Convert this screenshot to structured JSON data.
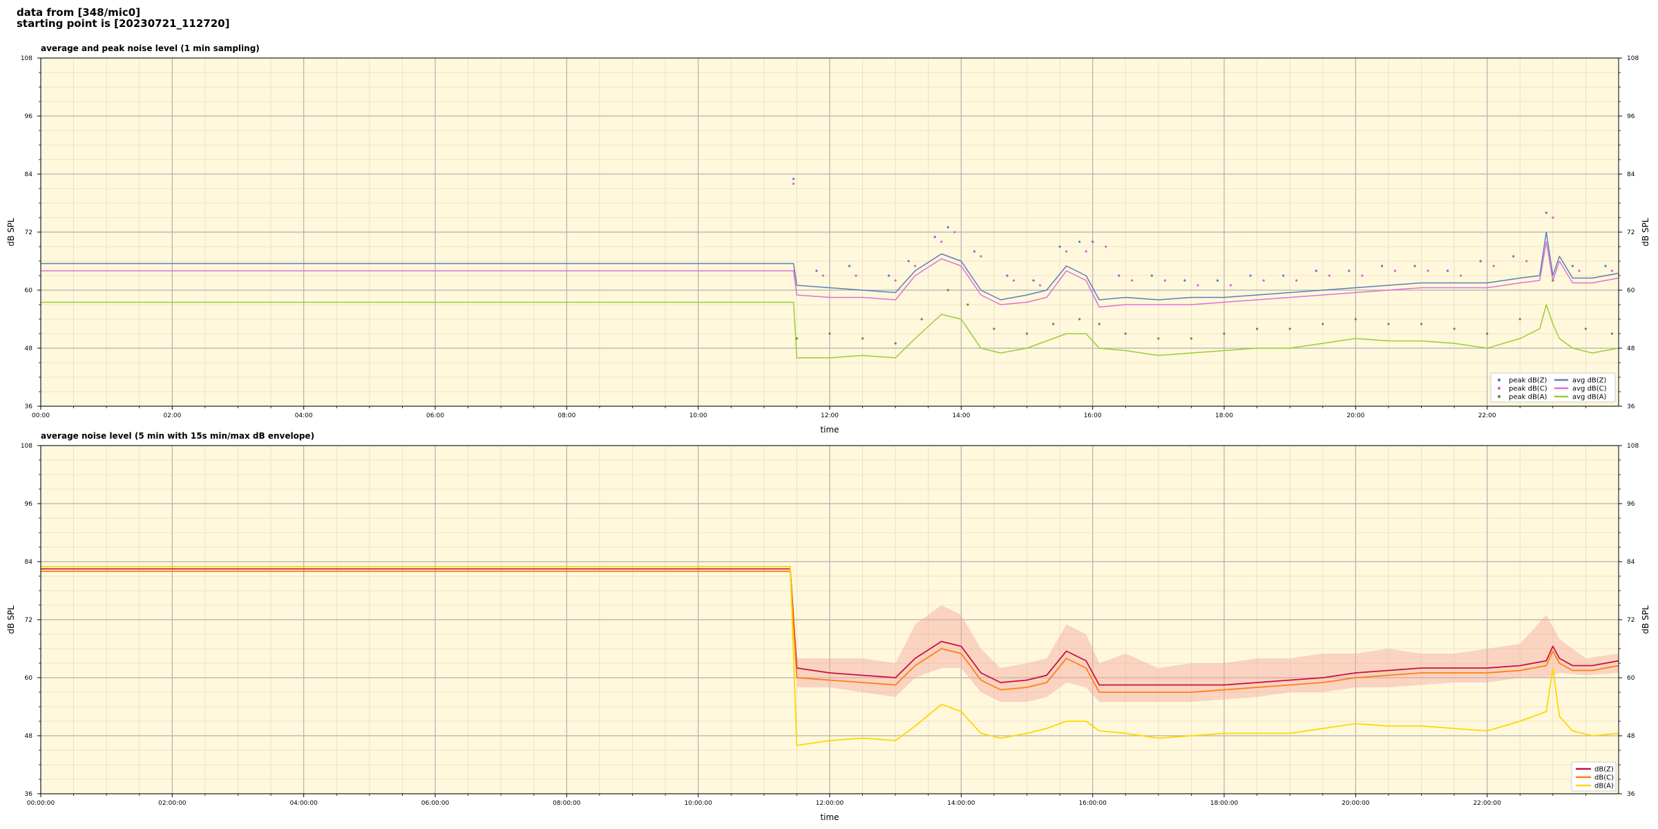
{
  "header": {
    "line1": "data from [348/mic0]",
    "line2": "starting point is [20230721_112720]"
  },
  "chart_data": [
    {
      "type": "line",
      "title": "average and peak noise level (1 min sampling)",
      "xlabel": "time",
      "ylabel": "dB SPL",
      "xlim": [
        0,
        24
      ],
      "ylim": [
        36,
        108
      ],
      "yticks": [
        36,
        48,
        60,
        72,
        84,
        96,
        108
      ],
      "xticks": [
        0,
        2,
        4,
        6,
        8,
        10,
        12,
        14,
        16,
        18,
        20,
        22
      ],
      "xtick_labels": [
        "00:00",
        "02:00",
        "04:00",
        "06:00",
        "08:00",
        "10:00",
        "12:00",
        "14:00",
        "16:00",
        "18:00",
        "20:00",
        "22:00"
      ],
      "grid": true,
      "legend_position": "lower-right",
      "legend": [
        "peak dB(Z)",
        "peak dB(C)",
        "peak dB(A)",
        "avg dB(Z)",
        "avg dB(C)",
        "avg dB(A)"
      ],
      "colors": {
        "Z": "#4a7fd0",
        "C": "#e05cd8",
        "A": "#9acd32"
      },
      "series": [
        {
          "name": "avg dB(Z)",
          "kind": "line",
          "color": "#5b7fb8",
          "x": [
            0,
            11.45,
            11.5,
            12,
            12.5,
            13,
            13.3,
            13.7,
            14,
            14.3,
            14.6,
            15,
            15.3,
            15.6,
            15.9,
            16.1,
            16.5,
            17,
            17.5,
            18,
            18.5,
            19,
            19.5,
            20,
            20.5,
            21,
            21.5,
            22,
            22.5,
            22.8,
            22.9,
            23.0,
            23.1,
            23.3,
            23.6,
            24
          ],
          "y": [
            65.5,
            65.5,
            61,
            60.5,
            60,
            59.5,
            64,
            67.5,
            66,
            60,
            58,
            59,
            60,
            65,
            63,
            58,
            58.5,
            58,
            58.5,
            58.5,
            59,
            59.5,
            60,
            60.5,
            61,
            61.5,
            61.5,
            61.5,
            62.5,
            63,
            72,
            63,
            67,
            62.5,
            62.5,
            63.5
          ]
        },
        {
          "name": "avg dB(C)",
          "kind": "line",
          "color": "#e070d8",
          "x": [
            0,
            11.45,
            11.5,
            12,
            12.5,
            13,
            13.3,
            13.7,
            14,
            14.3,
            14.6,
            15,
            15.3,
            15.6,
            15.9,
            16.1,
            16.5,
            17,
            17.5,
            18,
            18.5,
            19,
            19.5,
            20,
            20.5,
            21,
            21.5,
            22,
            22.5,
            22.8,
            22.9,
            23.0,
            23.1,
            23.3,
            23.6,
            24
          ],
          "y": [
            64,
            64,
            59,
            58.5,
            58.5,
            58,
            63,
            66.5,
            65,
            59,
            57,
            57.5,
            58.5,
            64,
            62,
            56.5,
            57,
            57,
            57,
            57.5,
            58,
            58.5,
            59,
            59.5,
            60,
            60.5,
            60.5,
            60.5,
            61.5,
            62,
            70,
            62,
            66,
            61.5,
            61.5,
            62.5
          ]
        },
        {
          "name": "avg dB(A)",
          "kind": "line",
          "color": "#9acd32",
          "x": [
            0,
            11.45,
            11.5,
            12,
            12.5,
            13,
            13.3,
            13.7,
            14,
            14.3,
            14.6,
            15,
            15.3,
            15.6,
            15.9,
            16.1,
            16.5,
            17,
            17.5,
            18,
            18.5,
            19,
            19.5,
            20,
            20.5,
            21,
            21.5,
            22,
            22.5,
            22.8,
            22.9,
            23.0,
            23.1,
            23.3,
            23.6,
            24
          ],
          "y": [
            57.5,
            57.5,
            46,
            46,
            46.5,
            46,
            50,
            55,
            54,
            48,
            47,
            48,
            49.5,
            51,
            51,
            48,
            47.5,
            46.5,
            47,
            47.5,
            48,
            48,
            49,
            50,
            49.5,
            49.5,
            49,
            48,
            50,
            52,
            57,
            53,
            50,
            48,
            47,
            48
          ]
        },
        {
          "name": "peak dB(Z)",
          "kind": "scatter",
          "color": "#4a7fd0",
          "x": [
            11.45,
            11.8,
            12.3,
            12.9,
            13.2,
            13.6,
            13.8,
            14.2,
            14.7,
            15.1,
            15.5,
            15.8,
            16.0,
            16.4,
            16.9,
            17.4,
            17.9,
            18.4,
            18.9,
            19.4,
            19.9,
            20.4,
            20.9,
            21.4,
            21.9,
            22.4,
            22.9,
            23.3,
            23.8
          ],
          "y": [
            83,
            64,
            65,
            63,
            66,
            71,
            73,
            68,
            63,
            62,
            69,
            70,
            70,
            63,
            63,
            62,
            62,
            63,
            63,
            64,
            64,
            65,
            65,
            64,
            66,
            67,
            76,
            65,
            65
          ]
        },
        {
          "name": "peak dB(C)",
          "kind": "scatter",
          "color": "#e05cd8",
          "x": [
            11.45,
            11.9,
            12.4,
            13.0,
            13.3,
            13.7,
            13.9,
            14.3,
            14.8,
            15.2,
            15.6,
            15.9,
            16.2,
            16.6,
            17.1,
            17.6,
            18.1,
            18.6,
            19.1,
            19.6,
            20.1,
            20.6,
            21.1,
            21.6,
            22.1,
            22.6,
            23.0,
            23.4,
            23.9
          ],
          "y": [
            82,
            63,
            63,
            62,
            65,
            70,
            72,
            67,
            62,
            61,
            68,
            68,
            69,
            62,
            62,
            61,
            61,
            62,
            62,
            63,
            63,
            64,
            64,
            63,
            65,
            66,
            75,
            64,
            64
          ]
        },
        {
          "name": "peak dB(A)",
          "kind": "scatter",
          "color": "#6b8e23",
          "x": [
            11.5,
            12.0,
            12.5,
            13.0,
            13.4,
            13.8,
            14.1,
            14.5,
            15.0,
            15.4,
            15.8,
            16.1,
            16.5,
            17.0,
            17.5,
            18.0,
            18.5,
            19.0,
            19.5,
            20.0,
            20.5,
            21.0,
            21.5,
            22.0,
            22.5,
            23.0,
            23.5,
            23.9
          ],
          "y": [
            50,
            51,
            50,
            49,
            54,
            60,
            57,
            52,
            51,
            53,
            54,
            53,
            51,
            50,
            50,
            51,
            52,
            52,
            53,
            54,
            53,
            53,
            52,
            51,
            54,
            62,
            52,
            51
          ]
        }
      ]
    },
    {
      "type": "line",
      "title": "average noise level (5 min with 15s min/max dB envelope)",
      "xlabel": "time",
      "ylabel": "dB SPL",
      "xlim": [
        0,
        24
      ],
      "ylim": [
        36,
        108
      ],
      "yticks": [
        36,
        48,
        60,
        72,
        84,
        96,
        108
      ],
      "xticks": [
        0,
        2,
        4,
        6,
        8,
        10,
        12,
        14,
        16,
        18,
        20,
        22
      ],
      "xtick_labels": [
        "00:00:00",
        "02:00:00",
        "04:00:00",
        "06:00:00",
        "08:00:00",
        "10:00:00",
        "12:00:00",
        "14:00:00",
        "16:00:00",
        "18:00:00",
        "20:00:00",
        "22:00:00"
      ],
      "grid": true,
      "legend_position": "lower-right",
      "legend": [
        "dB(Z)",
        "dB(C)",
        "dB(A)"
      ],
      "envelope_color": "#f4a6a0",
      "envelope": {
        "x": [
          11.5,
          12,
          12.5,
          13,
          13.3,
          13.7,
          14,
          14.3,
          14.6,
          15,
          15.3,
          15.6,
          15.9,
          16.1,
          16.5,
          17,
          17.5,
          18,
          18.5,
          19,
          19.5,
          20,
          20.5,
          21,
          21.5,
          22,
          22.5,
          22.9,
          23.1,
          23.5,
          24
        ],
        "lower": [
          58,
          58,
          57,
          56,
          60,
          62,
          62,
          57,
          55,
          55,
          56,
          59,
          58,
          55,
          55,
          55,
          55,
          55.5,
          56,
          57,
          57,
          58,
          58,
          58.5,
          59,
          59,
          60,
          60,
          61,
          60.5,
          61
        ],
        "upper": [
          64,
          64,
          64,
          63,
          71,
          75,
          73,
          66,
          62,
          63,
          64,
          71,
          69,
          63,
          65,
          62,
          63,
          63,
          64,
          64,
          65,
          65,
          66,
          65,
          65,
          66,
          67,
          73,
          68,
          64,
          65
        ]
      },
      "series": [
        {
          "name": "dB(Z)",
          "color": "#c8103c",
          "x": [
            0,
            11.4,
            11.5,
            12,
            12.5,
            13,
            13.3,
            13.7,
            14,
            14.3,
            14.6,
            15,
            15.3,
            15.6,
            15.9,
            16.1,
            16.5,
            17,
            17.5,
            18,
            18.5,
            19,
            19.5,
            20,
            20.5,
            21,
            21.5,
            22,
            22.5,
            22.9,
            23.0,
            23.1,
            23.3,
            23.6,
            24
          ],
          "y": [
            82.5,
            82.5,
            62,
            61,
            60.5,
            60,
            64,
            67.5,
            66.5,
            61,
            59,
            59.5,
            60.5,
            65.5,
            63.5,
            58.5,
            58.5,
            58.5,
            58.5,
            58.5,
            59,
            59.5,
            60,
            61,
            61.5,
            62,
            62,
            62,
            62.5,
            63.5,
            66.5,
            64,
            62.5,
            62.5,
            63.5
          ]
        },
        {
          "name": "dB(C)",
          "color": "#ff7f0e",
          "x": [
            0,
            11.4,
            11.5,
            12,
            12.5,
            13,
            13.3,
            13.7,
            14,
            14.3,
            14.6,
            15,
            15.3,
            15.6,
            15.9,
            16.1,
            16.5,
            17,
            17.5,
            18,
            18.5,
            19,
            19.5,
            20,
            20.5,
            21,
            21.5,
            22,
            22.5,
            22.9,
            23.0,
            23.1,
            23.3,
            23.6,
            24
          ],
          "y": [
            82,
            82,
            60,
            59.5,
            59,
            58.5,
            62.5,
            66,
            65,
            59.5,
            57.5,
            58,
            59,
            64,
            62,
            57,
            57,
            57,
            57,
            57.5,
            58,
            58.5,
            59,
            60,
            60.5,
            61,
            61,
            61,
            61.5,
            62.5,
            65.5,
            63,
            61.5,
            61.5,
            62.5
          ]
        },
        {
          "name": "dB(A)",
          "color": "#ffd700",
          "x": [
            0,
            11.4,
            11.5,
            12,
            12.5,
            13,
            13.3,
            13.7,
            14,
            14.3,
            14.6,
            15,
            15.3,
            15.6,
            15.9,
            16.1,
            16.5,
            17,
            17.5,
            18,
            18.5,
            19,
            19.5,
            20,
            20.5,
            21,
            21.5,
            22,
            22.5,
            22.9,
            23.0,
            23.1,
            23.3,
            23.6,
            24
          ],
          "y": [
            83,
            83,
            46,
            47,
            47.5,
            47,
            50,
            54.5,
            53,
            48.5,
            47.5,
            48.5,
            49.5,
            51,
            51,
            49,
            48.5,
            47.5,
            48,
            48.5,
            48.5,
            48.5,
            49.5,
            50.5,
            50,
            50,
            49.5,
            49,
            51,
            53,
            62,
            52,
            49,
            48,
            48.5
          ]
        }
      ]
    }
  ]
}
